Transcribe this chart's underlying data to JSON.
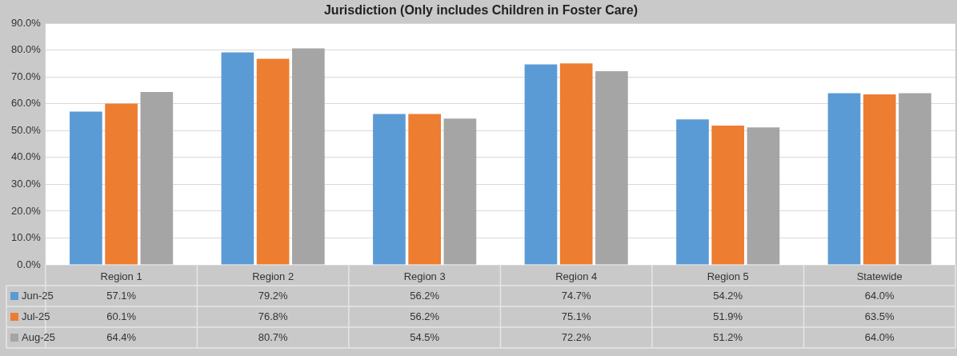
{
  "chart_data": {
    "type": "bar",
    "title": "Jurisdiction (Only includes Children in Foster Care)",
    "categories": [
      "Region 1",
      "Region 2",
      "Region 3",
      "Region 4",
      "Region 5",
      "Statewide"
    ],
    "series": [
      {
        "name": "Jun-25",
        "color": "#5b9bd5",
        "values": [
          57.1,
          79.2,
          56.2,
          74.7,
          54.2,
          64.0
        ],
        "value_labels": [
          "57.1%",
          "79.2%",
          "56.2%",
          "74.7%",
          "54.2%",
          "64.0%"
        ]
      },
      {
        "name": "Jul-25",
        "color": "#ed7d31",
        "values": [
          60.1,
          76.8,
          56.2,
          75.1,
          51.9,
          63.5
        ],
        "value_labels": [
          "60.1%",
          "76.8%",
          "56.2%",
          "75.1%",
          "51.9%",
          "63.5%"
        ]
      },
      {
        "name": "Aug-25",
        "color": "#a5a5a5",
        "values": [
          64.4,
          80.7,
          54.5,
          72.2,
          51.2,
          64.0
        ],
        "value_labels": [
          "64.4%",
          "80.7%",
          "54.5%",
          "72.2%",
          "51.2%",
          "64.0%"
        ]
      }
    ],
    "ylim": [
      0,
      90
    ],
    "yticks": [
      {
        "value": 0,
        "label": "0.0%"
      },
      {
        "value": 10,
        "label": "10.0%"
      },
      {
        "value": 20,
        "label": "20.0%"
      },
      {
        "value": 30,
        "label": "30.0%"
      },
      {
        "value": 40,
        "label": "40.0%"
      },
      {
        "value": 50,
        "label": "50.0%"
      },
      {
        "value": 60,
        "label": "60.0%"
      },
      {
        "value": 70,
        "label": "70.0%"
      },
      {
        "value": 80,
        "label": "80.0%"
      },
      {
        "value": 90,
        "label": "90.0%"
      }
    ],
    "grid": "y",
    "legend": "bottom left"
  }
}
